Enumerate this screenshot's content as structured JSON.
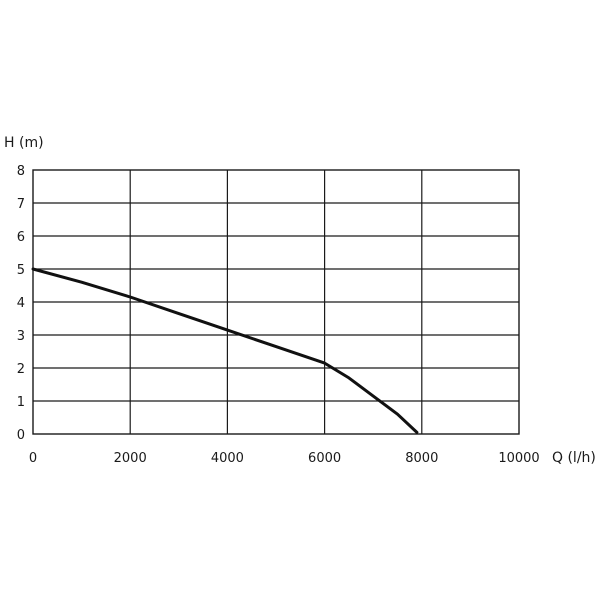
{
  "chart_data": {
    "type": "line",
    "xlabel": "Q (l/h)",
    "ylabel": "H (m)",
    "xlim": [
      0,
      10000
    ],
    "ylim": [
      0,
      8
    ],
    "x_ticks": [
      0,
      2000,
      4000,
      6000,
      8000,
      10000
    ],
    "y_ticks": [
      0,
      1,
      2,
      3,
      4,
      5,
      6,
      7,
      8
    ],
    "grid": true,
    "series": [
      {
        "x": [
          0,
          1000,
          2000,
          3000,
          4000,
          5000,
          6000,
          6500,
          7000,
          7500,
          7900
        ],
        "y": [
          5.0,
          4.6,
          4.15,
          3.65,
          3.15,
          2.65,
          2.15,
          1.7,
          1.15,
          0.6,
          0.05
        ],
        "color": "#111111"
      }
    ]
  }
}
